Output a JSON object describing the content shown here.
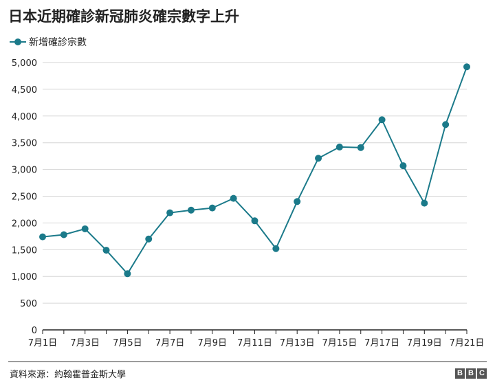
{
  "title": "日本近期確診新冠肺炎確宗數字上升",
  "source": "資料來源：約翰霍普金斯大學",
  "brand": [
    "B",
    "B",
    "C"
  ],
  "colors": {
    "series": "#1b7a8a",
    "grid": "#d6d6d6",
    "axis": "#222222"
  },
  "chart_data": {
    "type": "line",
    "x": [
      "7月1日",
      "7月2日",
      "7月3日",
      "7月4日",
      "7月5日",
      "7月6日",
      "7月7日",
      "7月8日",
      "7月9日",
      "7月10日",
      "7月11日",
      "7月12日",
      "7月13日",
      "7月14日",
      "7月15日",
      "7月16日",
      "7月17日",
      "7月18日",
      "7月19日",
      "7月20日",
      "7月21日"
    ],
    "x_tick_labels": [
      "7月1日",
      "7月3日",
      "7月5日",
      "7月7日",
      "7月9日",
      "7月11日",
      "7月13日",
      "7月15日",
      "7月17日",
      "7月19日",
      "7月21日"
    ],
    "series": [
      {
        "name": "新增確診宗數",
        "values": [
          1740,
          1780,
          1890,
          1490,
          1050,
          1700,
          2190,
          2240,
          2280,
          2460,
          2040,
          1520,
          2400,
          3210,
          3420,
          3410,
          3930,
          3070,
          2370,
          3840,
          4920
        ]
      }
    ],
    "y_ticks": [
      "0",
      "500",
      "1,000",
      "1,500",
      "2,000",
      "2,500",
      "3,000",
      "3,500",
      "4,000",
      "4,500",
      "5,000"
    ],
    "ylim": [
      0,
      5000
    ],
    "grid": true,
    "legend": "top-left"
  }
}
